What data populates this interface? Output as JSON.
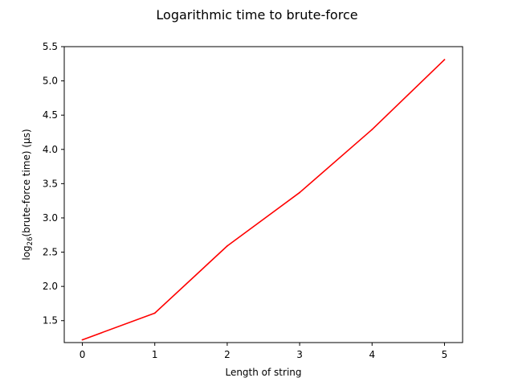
{
  "chart_data": {
    "type": "line",
    "title": "Logarithmic time to brute-force",
    "xlabel": "Length of string",
    "ylabel": {
      "base": "log",
      "subscript": "26",
      "rest": "(brute-force time) (μs)"
    },
    "x": [
      0,
      1,
      2,
      3,
      4,
      5
    ],
    "series": [
      {
        "name": "log26 brute-force time",
        "color": "#ff0000",
        "values": [
          1.22,
          1.61,
          2.59,
          3.37,
          4.29,
          5.31
        ]
      }
    ],
    "xlim": [
      -0.25,
      5.25
    ],
    "ylim": [
      1.18,
      5.5
    ],
    "xticks": [
      0,
      1,
      2,
      3,
      4,
      5
    ],
    "yticks": [
      1.5,
      2.0,
      2.5,
      3.0,
      3.5,
      4.0,
      4.5,
      5.0,
      5.5
    ],
    "xtick_labels": [
      "0",
      "1",
      "2",
      "3",
      "4",
      "5"
    ],
    "ytick_labels": [
      "1.5",
      "2.0",
      "2.5",
      "3.0",
      "3.5",
      "4.0",
      "4.5",
      "5.0",
      "5.5"
    ],
    "grid": false,
    "legend": "none"
  }
}
